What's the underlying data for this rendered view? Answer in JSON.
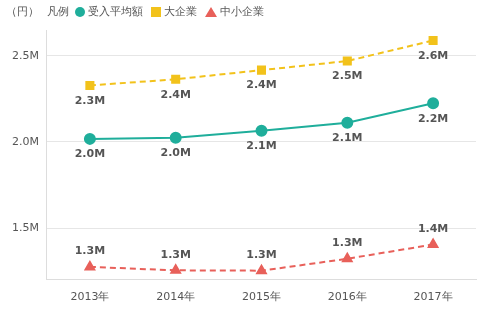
{
  "chart_data": {
    "type": "line",
    "y_label": "（円）",
    "legend_title": "凡例",
    "legend": "top-left",
    "categories": [
      "2013年",
      "2014年",
      "2015年",
      "2016年",
      "2017年"
    ],
    "ylim": [
      1200000,
      2650000
    ],
    "yticks": [
      {
        "value": 1500000,
        "label": "1.5M"
      },
      {
        "value": 2000000,
        "label": "2.0M"
      },
      {
        "value": 2500000,
        "label": "2.5M"
      }
    ],
    "grid": true,
    "data_labels": true,
    "series": [
      {
        "name": "受入平均額",
        "color": "#1fae9b",
        "marker": "circle",
        "line_style": "solid",
        "values": [
          2018000,
          2024000,
          2065000,
          2112000,
          2225000
        ],
        "value_labels": [
          "2.0M",
          "2.0M",
          "2.1M",
          "2.1M",
          "2.2M"
        ]
      },
      {
        "name": "大企業",
        "color": "#f2c21b",
        "marker": "square",
        "line_style": "dashed",
        "values": [
          2328000,
          2364000,
          2417000,
          2470000,
          2589000
        ],
        "value_labels": [
          "2.3M",
          "2.4M",
          "2.4M",
          "2.5M",
          "2.6M"
        ]
      },
      {
        "name": "中小企業",
        "color": "#e8605a",
        "marker": "triangle",
        "line_style": "dashed",
        "values": [
          1275000,
          1255000,
          1253000,
          1322000,
          1405000
        ],
        "value_labels": [
          "1.3M",
          "1.3M",
          "1.3M",
          "1.3M",
          "1.4M"
        ]
      }
    ]
  }
}
